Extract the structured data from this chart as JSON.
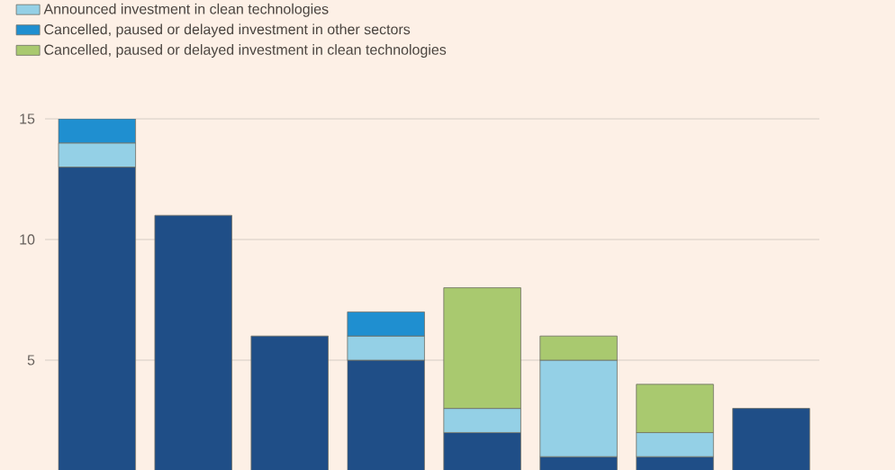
{
  "chart_data": {
    "type": "bar",
    "stacked": true,
    "categories": [
      null,
      null,
      null,
      null,
      null,
      null,
      null,
      null
    ],
    "series": [
      {
        "color": "#1f4e87",
        "values": [
          13,
          11,
          6,
          5,
          2,
          1,
          1,
          3
        ]
      },
      {
        "name": "Announced investment in clean technologies",
        "color": "#94d0e6",
        "values": [
          1,
          null,
          null,
          1,
          1,
          4,
          1,
          null
        ]
      },
      {
        "name": "Cancelled, paused or delayed investment in other sectors",
        "color": "#1f8fd0",
        "values": [
          1,
          null,
          null,
          1,
          null,
          null,
          null,
          null
        ]
      },
      {
        "name": "Cancelled, paused or delayed investment in clean technologies",
        "color": "#a9c96f",
        "values": [
          null,
          null,
          null,
          null,
          5,
          1,
          2,
          null
        ]
      }
    ],
    "ylim": [
      0.45,
      15
    ],
    "yticks": [
      5,
      10,
      15
    ],
    "grid": "y",
    "legend": "top left"
  }
}
